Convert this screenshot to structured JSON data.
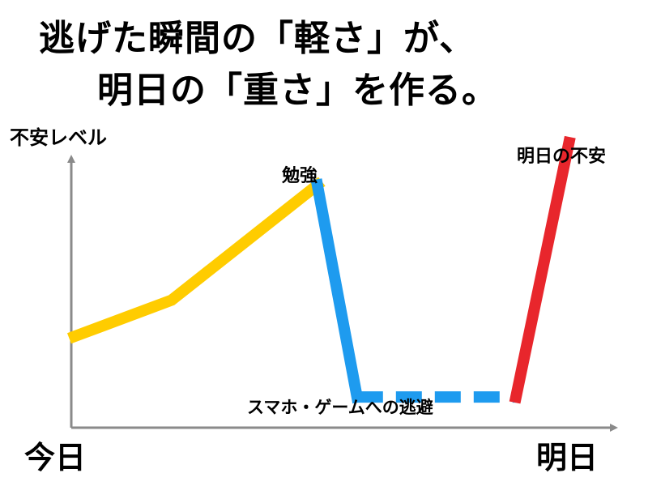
{
  "headline": {
    "line1": "逃げた瞬間の「軽さ」が、",
    "line2": "明日の「重さ」を作る。"
  },
  "chart_data": {
    "type": "line",
    "ylabel": "不安レベル",
    "x_start_label": "今日",
    "x_end_label": "明日",
    "grid": false,
    "annotations": {
      "study": "勉強",
      "escape": "スマホ・ゲームへの逃避",
      "tomorrow": "明日の不安"
    },
    "series": [
      {
        "color": "#FFCC00",
        "points": [
          [
            0,
            2.8
          ],
          [
            0.22,
            4.0
          ],
          [
            0.55,
            7.8
          ]
        ]
      },
      {
        "color": "#1E9BEF",
        "points": [
          [
            0.55,
            7.8
          ],
          [
            0.64,
            0.8
          ]
        ]
      },
      {
        "color": "#1E9BEF",
        "dashed": true,
        "points": [
          [
            0.64,
            0.8
          ],
          [
            1.0,
            0.8
          ]
        ]
      },
      {
        "color": "#E8262C",
        "points": [
          [
            1.0,
            0.8
          ],
          [
            1.12,
            9.2
          ]
        ]
      }
    ]
  }
}
